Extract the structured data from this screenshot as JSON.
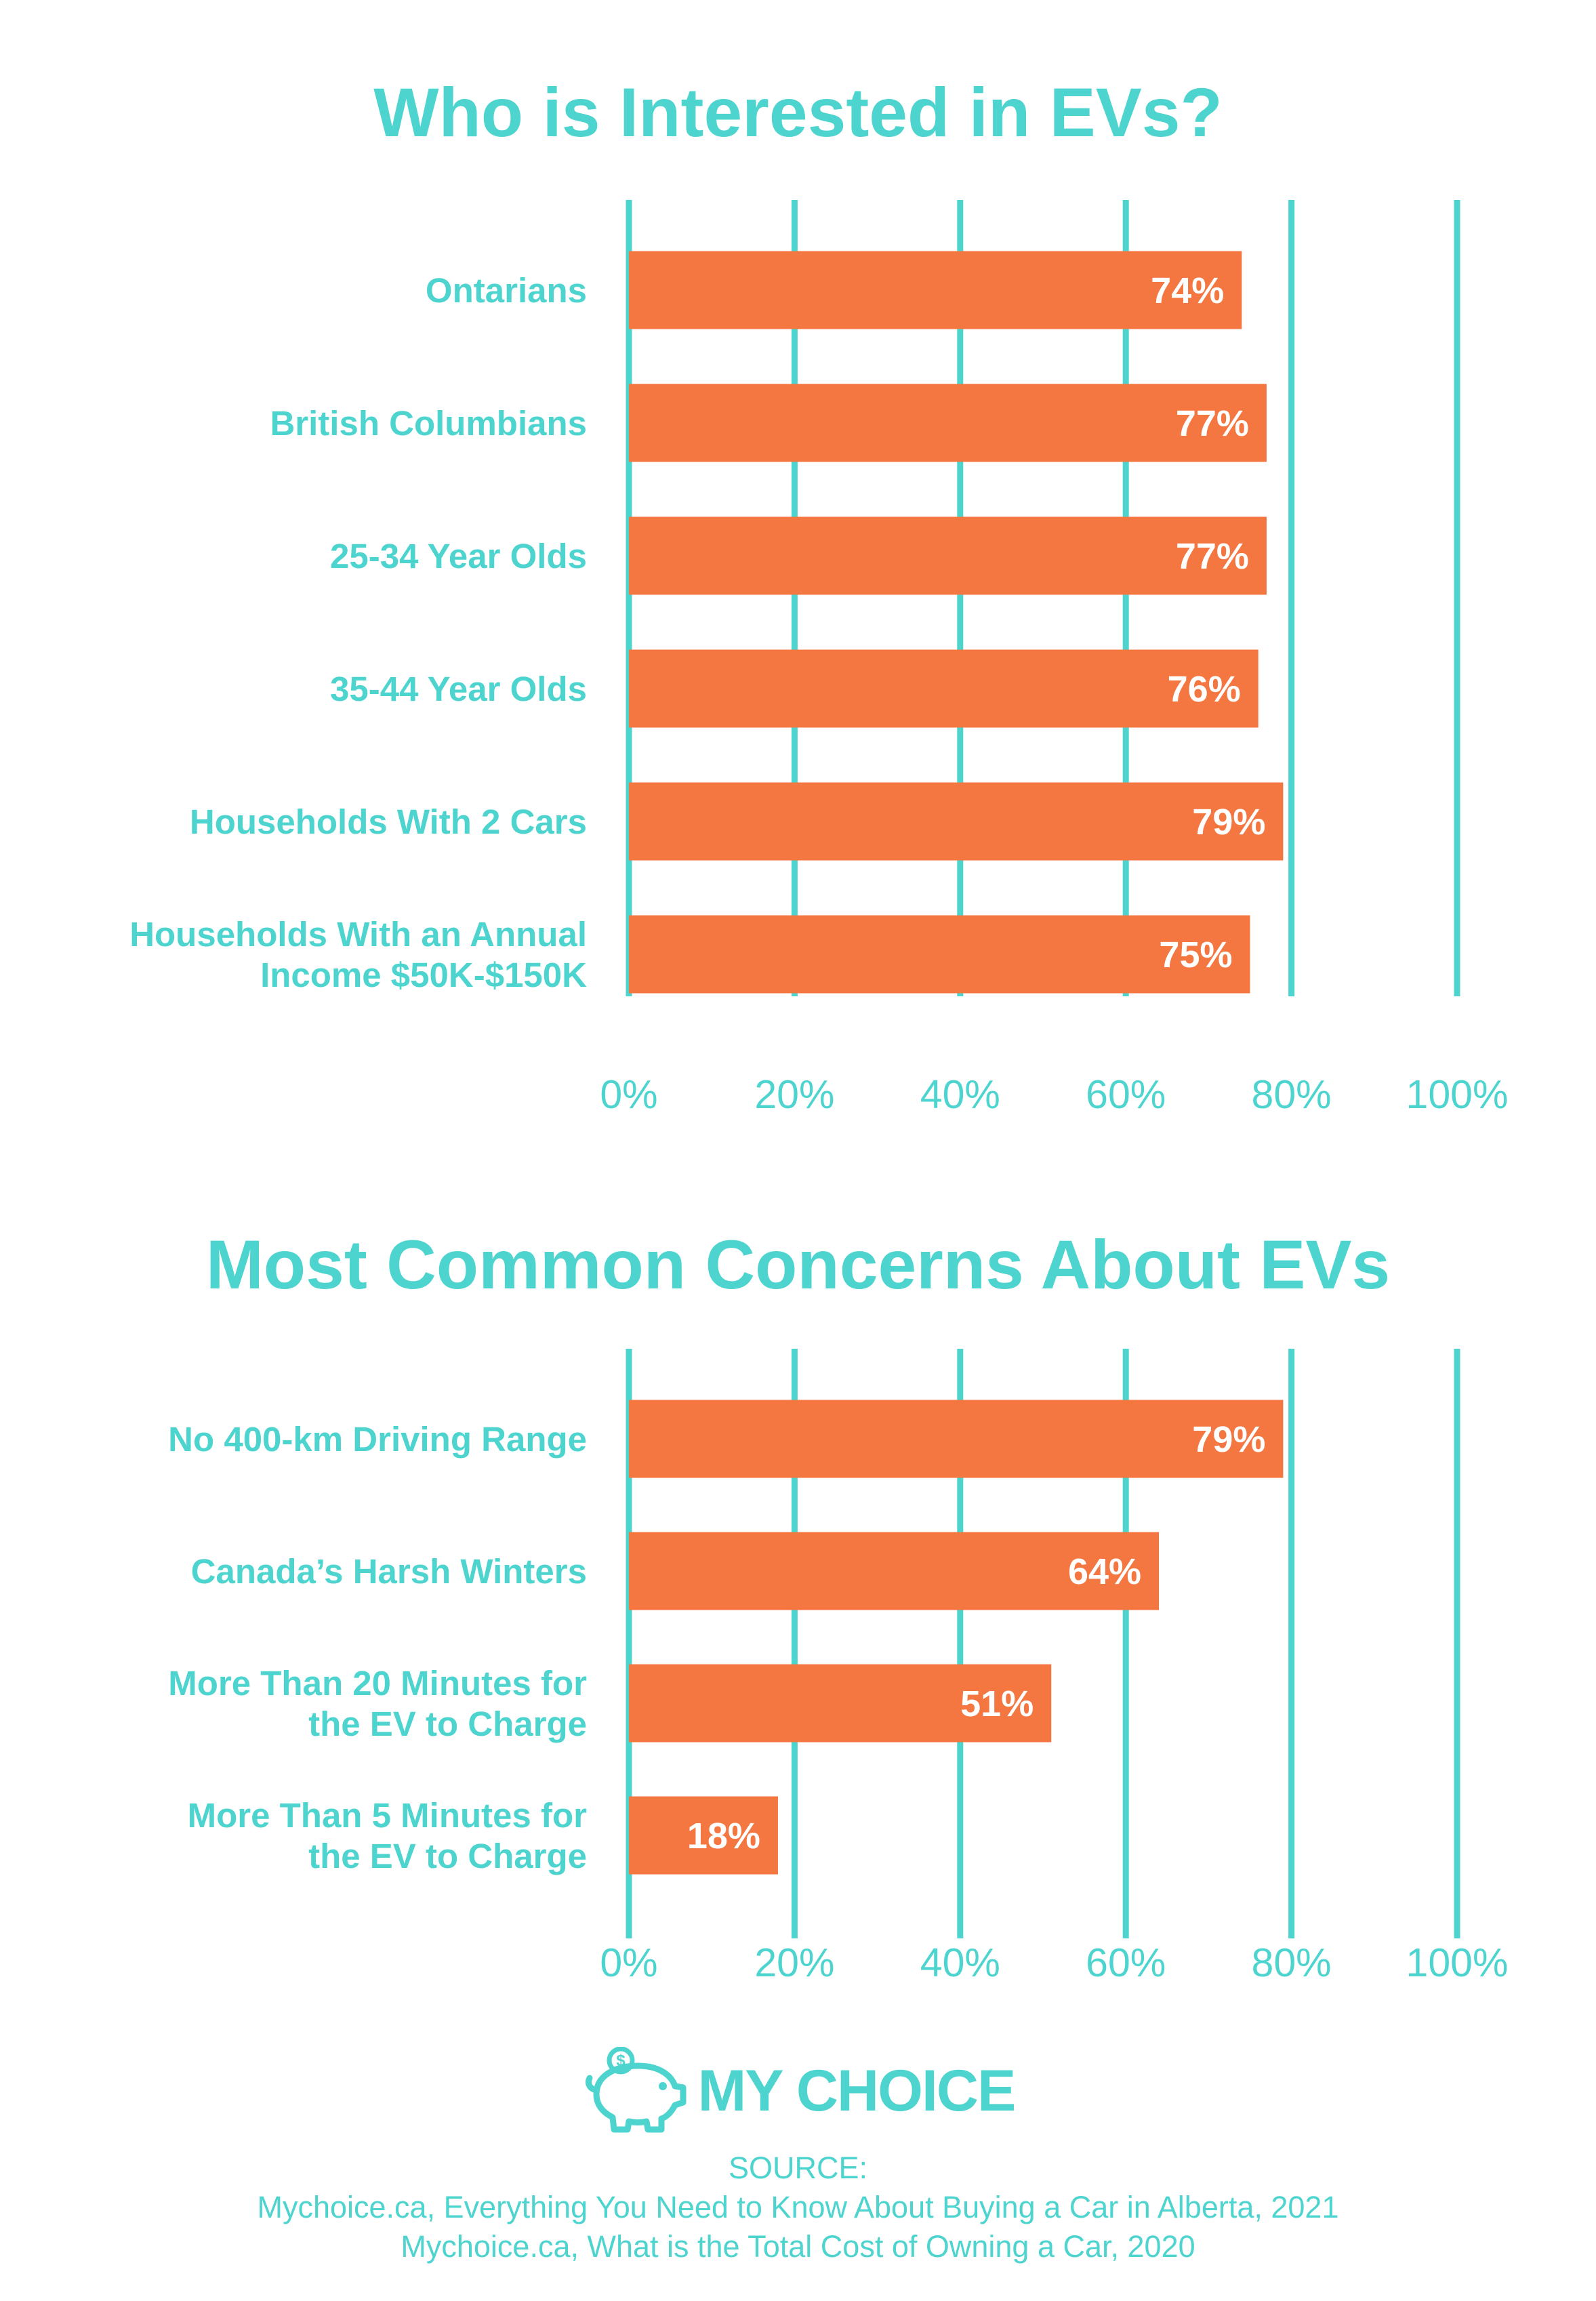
{
  "colors": {
    "teal": "#4dd4cf",
    "orange": "#f47641",
    "white": "#ffffff"
  },
  "chart_data": [
    {
      "type": "bar",
      "orientation": "horizontal",
      "title": "Who is Interested in EVs?",
      "categories": [
        [
          "Ontarians"
        ],
        [
          "British Columbians"
        ],
        [
          "25-34 Year Olds"
        ],
        [
          "35-44 Year Olds"
        ],
        [
          "Households With 2 Cars"
        ],
        [
          "Households With an Annual",
          "Income $50K-$150K"
        ]
      ],
      "values": [
        74,
        77,
        77,
        76,
        79,
        75
      ],
      "value_labels": [
        "74%",
        "77%",
        "77%",
        "76%",
        "79%",
        "75%"
      ],
      "xlim": [
        0,
        100
      ],
      "ticks": [
        0,
        20,
        40,
        60,
        80,
        100
      ],
      "tick_labels": [
        "0%",
        "20%",
        "40%",
        "60%",
        "80%",
        "100%"
      ],
      "grid": true
    },
    {
      "type": "bar",
      "orientation": "horizontal",
      "title": "Most Common Concerns About EVs",
      "categories": [
        [
          "No 400-km Driving Range"
        ],
        [
          "Canada’s Harsh Winters"
        ],
        [
          "More Than 20 Minutes for",
          "the EV to Charge"
        ],
        [
          "More Than 5 Minutes for",
          "the EV to Charge"
        ]
      ],
      "values": [
        79,
        64,
        51,
        18
      ],
      "value_labels": [
        "79%",
        "64%",
        "51%",
        "18%"
      ],
      "xlim": [
        0,
        100
      ],
      "ticks": [
        0,
        20,
        40,
        60,
        80,
        100
      ],
      "tick_labels": [
        "0%",
        "20%",
        "40%",
        "60%",
        "80%",
        "100%"
      ],
      "grid": true
    }
  ],
  "logo": {
    "text": "MY CHOICE",
    "icon": "piggy-bank-icon"
  },
  "source": {
    "heading": "SOURCE:",
    "lines": [
      "Mychoice.ca, Everything You Need to Know About Buying a Car in Alberta, 2021",
      "Mychoice.ca, What is the Total Cost of Owning a Car, 2020"
    ]
  }
}
